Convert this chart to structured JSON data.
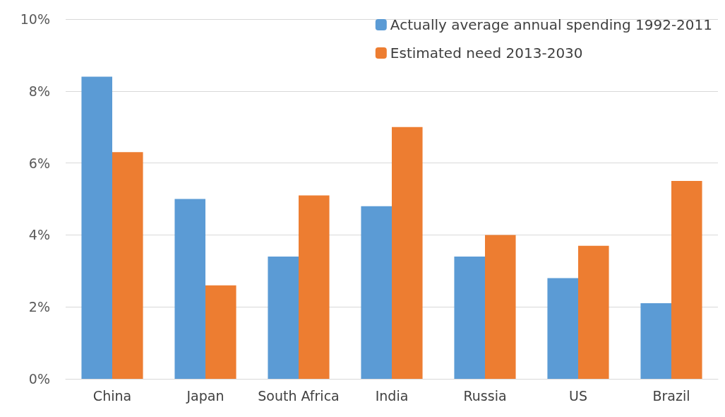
{
  "chart_data": {
    "type": "bar",
    "categories": [
      "China",
      "Japan",
      "South Africa",
      "India",
      "Russia",
      "US",
      "Brazil"
    ],
    "series": [
      {
        "name": "Actually average annual spending 1992-2011",
        "color": "#5b9bd5",
        "values": [
          8.4,
          5.0,
          3.4,
          4.8,
          3.4,
          2.8,
          2.1
        ]
      },
      {
        "name": "Estimated need 2013-2030",
        "color": "#ed7d31",
        "values": [
          6.3,
          2.6,
          5.1,
          7.0,
          4.0,
          3.7,
          5.5
        ]
      }
    ],
    "ylim": [
      0,
      10
    ],
    "yticks": [
      {
        "value": 0,
        "label": "0%"
      },
      {
        "value": 2,
        "label": "2%"
      },
      {
        "value": 4,
        "label": "4%"
      },
      {
        "value": 6,
        "label": "6%"
      },
      {
        "value": 8,
        "label": "8%"
      },
      {
        "value": 10,
        "label": "10%"
      }
    ],
    "grid": "y",
    "legend": "top right"
  }
}
